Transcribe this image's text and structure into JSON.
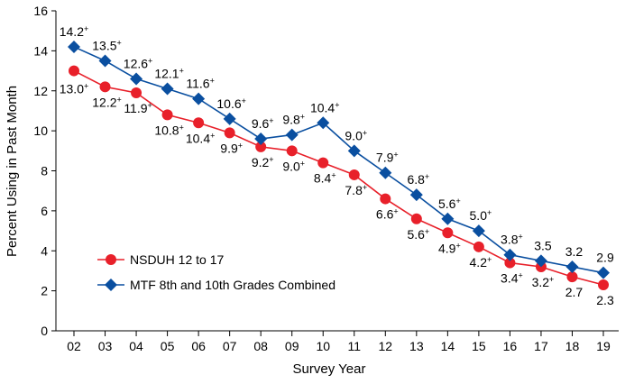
{
  "chart_data": {
    "type": "line",
    "xlabel": "Survey Year",
    "ylabel": "Percent Using in Past Month",
    "categories": [
      "02",
      "03",
      "04",
      "05",
      "06",
      "07",
      "08",
      "09",
      "10",
      "11",
      "12",
      "13",
      "14",
      "15",
      "16",
      "17",
      "18",
      "19"
    ],
    "ylim": [
      0,
      16
    ],
    "yticks": [
      0,
      2,
      4,
      6,
      8,
      10,
      12,
      14,
      16
    ],
    "grid": false,
    "legend_position": "bottom-left",
    "series": [
      {
        "name": "NSDUH 12 to 17",
        "color": "#e8202a",
        "marker": "circle",
        "values": [
          13.0,
          12.2,
          11.9,
          10.8,
          10.4,
          9.9,
          9.2,
          9.0,
          8.4,
          7.8,
          6.6,
          5.6,
          4.9,
          4.2,
          3.4,
          3.2,
          2.7,
          2.3
        ],
        "labels": [
          "13.0",
          "12.2",
          "11.9",
          "10.8",
          "10.4",
          "9.9",
          "9.2",
          "9.0",
          "8.4",
          "7.8",
          "6.6",
          "5.6",
          "4.9",
          "4.2",
          "3.4",
          "3.2",
          "2.7",
          "2.3"
        ],
        "significant": [
          true,
          true,
          true,
          true,
          true,
          true,
          true,
          true,
          true,
          true,
          true,
          true,
          true,
          true,
          true,
          true,
          false,
          false
        ]
      },
      {
        "name": "MTF 8th and 10th Grades Combined",
        "color": "#0a4fa0",
        "marker": "diamond",
        "values": [
          14.2,
          13.5,
          12.6,
          12.1,
          11.6,
          10.6,
          9.6,
          9.8,
          10.4,
          9.0,
          7.9,
          6.8,
          5.6,
          5.0,
          3.8,
          3.5,
          3.2,
          2.9
        ],
        "labels": [
          "14.2",
          "13.5",
          "12.6",
          "12.1",
          "11.6",
          "10.6",
          "9.6",
          "9.8",
          "10.4",
          "9.0",
          "7.9",
          "6.8",
          "5.6",
          "5.0",
          "3.8",
          "3.5",
          "3.2",
          "2.9"
        ],
        "significant": [
          true,
          true,
          true,
          true,
          true,
          true,
          true,
          true,
          true,
          true,
          true,
          true,
          true,
          true,
          true,
          false,
          false,
          false
        ]
      }
    ],
    "significance_marker": "+"
  }
}
